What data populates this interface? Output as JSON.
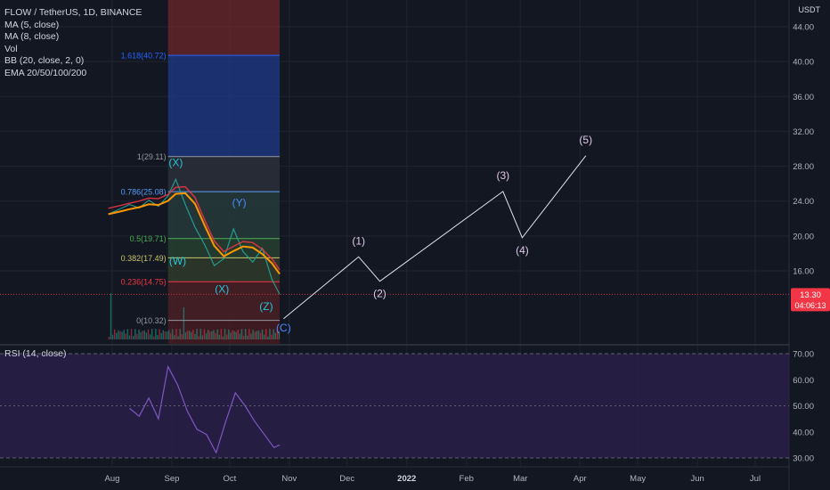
{
  "header": {
    "symbol_line": "FLOW / TetherUS, 1D, BINANCE",
    "indicators": [
      "MA (5, close)",
      "MA (8, close)",
      "Vol",
      "BB (20, close, 2, 0)",
      "EMA 20/50/100/200"
    ]
  },
  "price_axis": {
    "currency": "USDT"
  },
  "last_price": {
    "value": "13.30",
    "countdown": "04:06:13",
    "color": "#f23645"
  },
  "colors": {
    "background": "#131722",
    "grid": "#1f2430",
    "wave_path": "#e1e3ea",
    "wave_labels": "#e0c8e8",
    "wave_labels_blue": "#4a8cff",
    "rsi_line": "#7e57c2",
    "rsi_band": "#2a1f48",
    "fib_red": "#8b2b2b",
    "fib_blue": "#1f3a8a"
  },
  "rsi": {
    "label": "RSI (14, close)",
    "ticks": [
      "70.00",
      "60.00",
      "50.00",
      "40.00",
      "30.00"
    ]
  },
  "chart_data": [
    {
      "type": "line",
      "title": "FLOW / TetherUS, 1D, BINANCE",
      "ylabel": "USDT",
      "ylim": [
        9.5,
        46
      ],
      "x_tick_labels": [
        "Aug",
        "Sep",
        "Oct",
        "Nov",
        "Dec",
        "2022",
        "Feb",
        "Mar",
        "Apr",
        "May",
        "Jun",
        "Jul"
      ],
      "y_tick_labels": [
        "44.00",
        "40.00",
        "36.00",
        "32.00",
        "28.00",
        "24.00",
        "20.00",
        "16.00",
        "13.30"
      ],
      "fib_levels": [
        {
          "ratio": "0",
          "price": 10.32,
          "label": "0(10.32)"
        },
        {
          "ratio": "0.236",
          "price": 14.75,
          "label": "0.236(14.75)"
        },
        {
          "ratio": "0.382",
          "price": 17.49,
          "label": "0.382(17.49)"
        },
        {
          "ratio": "0.5",
          "price": 19.71,
          "label": "0.5(19.71)"
        },
        {
          "ratio": "0.786",
          "price": 25.08,
          "label": "0.786(25.08)"
        },
        {
          "ratio": "1",
          "price": 29.11,
          "label": "1(29.11)"
        },
        {
          "ratio": "1.618",
          "price": 40.72,
          "label": "1.618(40.72)"
        }
      ],
      "price_series": {
        "x": [
          "2021-07-30",
          "2021-08-05",
          "2021-08-10",
          "2021-08-15",
          "2021-08-20",
          "2021-08-25",
          "2021-08-30",
          "2021-09-03",
          "2021-09-08",
          "2021-09-13",
          "2021-09-18",
          "2021-09-23",
          "2021-09-28",
          "2021-10-03",
          "2021-10-08",
          "2021-10-13",
          "2021-10-18",
          "2021-10-23",
          "2021-10-27"
        ],
        "y": [
          22.5,
          23.1,
          23.6,
          23.2,
          24.1,
          23.4,
          24.6,
          26.5,
          23.6,
          21.0,
          19.0,
          16.6,
          17.4,
          20.8,
          18.2,
          17.0,
          18.6,
          15.0,
          13.3
        ]
      },
      "wave_projection": {
        "x": [
          "2021-10-29",
          "2021-12-07",
          "2021-12-18",
          "2022-02-20",
          "2022-03-02",
          "2022-04-04"
        ],
        "y": [
          10.5,
          17.6,
          14.8,
          25.1,
          19.8,
          29.2
        ],
        "labels": [
          "(C)",
          "(1)",
          "(2)",
          "(3)",
          "(4)",
          "(5)"
        ]
      },
      "wave_annotations": [
        "(X)",
        "(W)",
        "(X)",
        "(Y)",
        "(Z)"
      ]
    },
    {
      "type": "line",
      "title": "RSI (14, close)",
      "ylim": [
        29,
        72
      ],
      "y_tick_labels": [
        "70.00",
        "60.00",
        "50.00",
        "40.00",
        "30.00"
      ],
      "x": [
        "2021-08-10",
        "2021-08-15",
        "2021-08-20",
        "2021-08-25",
        "2021-08-30",
        "2021-09-04",
        "2021-09-09",
        "2021-09-14",
        "2021-09-19",
        "2021-09-24",
        "2021-09-29",
        "2021-10-04",
        "2021-10-09",
        "2021-10-14",
        "2021-10-19",
        "2021-10-24",
        "2021-10-27"
      ],
      "y": [
        49,
        46,
        53,
        45,
        65,
        58,
        48,
        41,
        39,
        32,
        44,
        55,
        50,
        44,
        39,
        34,
        35
      ]
    }
  ]
}
